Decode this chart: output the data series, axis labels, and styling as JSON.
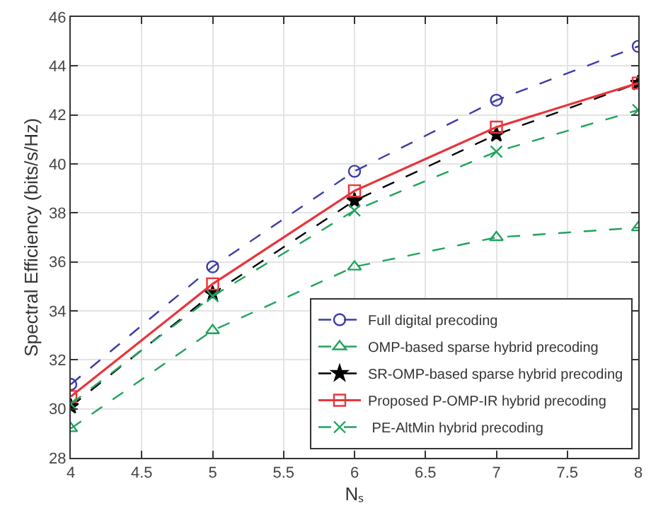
{
  "chart_data": {
    "type": "line",
    "xlabel": "Nₛ",
    "ylabel": "Spectral Efficiency (bits/s/Hz)",
    "x": [
      4,
      5,
      6,
      7,
      8
    ],
    "xlim": [
      4,
      8
    ],
    "xticks": [
      4,
      4.5,
      5,
      5.5,
      6,
      6.5,
      7,
      7.5,
      8
    ],
    "ylim": [
      28,
      46
    ],
    "yticks": [
      28,
      30,
      32,
      34,
      36,
      38,
      40,
      42,
      44,
      46
    ],
    "grid": true,
    "legend": "bottom right",
    "series": [
      {
        "name": "Full digital precoding",
        "color": "#3b3ba8",
        "marker": "circle",
        "line_style": "dashed",
        "values": [
          31.0,
          35.8,
          39.7,
          42.6,
          44.8
        ]
      },
      {
        "name": "OMP-based sparse hybrid precoding",
        "color": "#1fa35c",
        "marker": "triangle",
        "line_style": "dashed",
        "values": [
          29.2,
          33.2,
          35.8,
          37.0,
          37.4
        ]
      },
      {
        "name": "SR-OMP-based sparse hybrid precoding",
        "color": "#000000",
        "marker": "star",
        "line_style": "dashed",
        "values": [
          30.1,
          34.7,
          38.5,
          41.2,
          43.3
        ]
      },
      {
        "name": "Proposed P-OMP-IR hybrid precoding",
        "color": "#e8353b",
        "marker": "square",
        "line_style": "solid",
        "values": [
          30.5,
          35.1,
          38.9,
          41.5,
          43.3
        ]
      },
      {
        "name": " PE-AltMin hybrid precoding",
        "color": "#1fa35c",
        "marker": "cross",
        "line_style": "dashed",
        "values": [
          30.2,
          34.6,
          38.1,
          40.5,
          42.2
        ]
      }
    ]
  }
}
